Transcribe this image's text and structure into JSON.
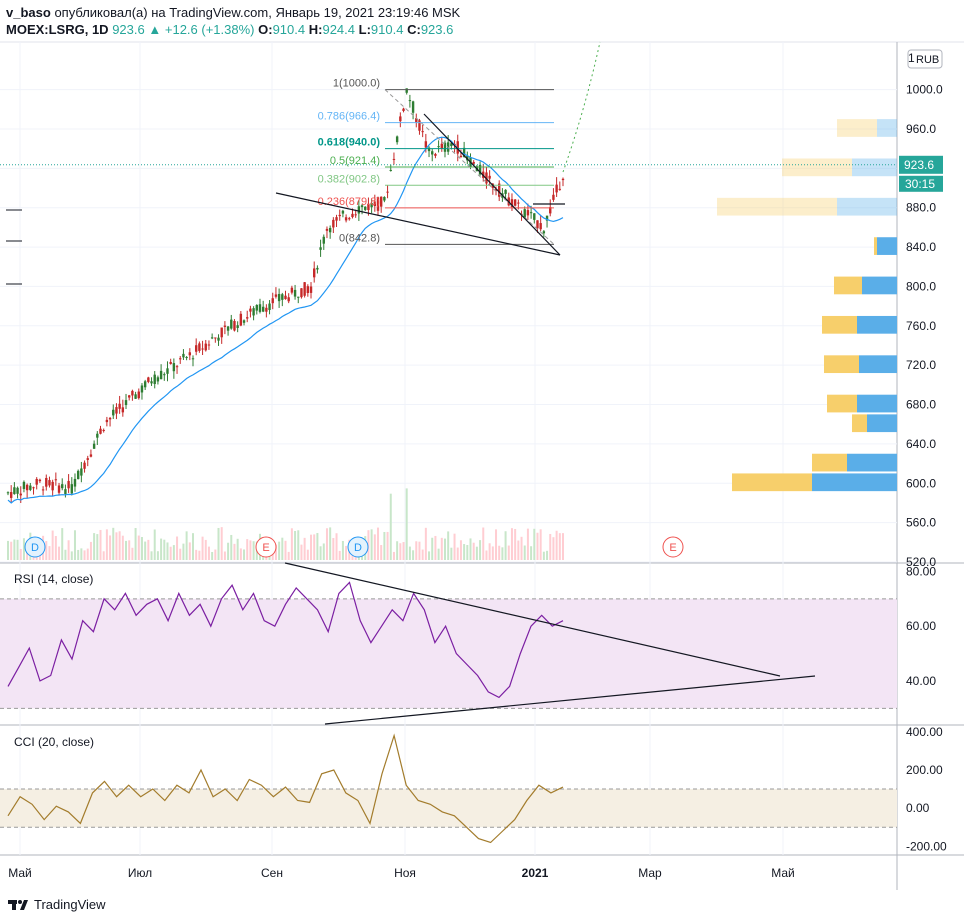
{
  "header": {
    "user": "v_baso",
    "published": "опубликовал(а) на TradingView.com, Январь 19, 2021 23:19:46 MSK",
    "symbol": "MOEX:LSRG, 1D",
    "last": "923.6",
    "change_arrow": "▲",
    "change": "+12.6 (+1.38%)",
    "o_label": "O:",
    "o": "910.4",
    "h_label": "H:",
    "h": "924.4",
    "l_label": "L:",
    "l": "910.4",
    "c_label": "C:",
    "c": "923.6"
  },
  "footer": {
    "brand": "TradingView",
    "logo_icon": "tradingview-logo-icon"
  },
  "colors": {
    "up": "#26a69a",
    "down": "#ef5350",
    "bar_up": "#2e7d32",
    "bar_down": "#c62828",
    "ma": "#2196f3",
    "rsi": "#7b1fa2",
    "rsi_band": "#f3e5f5",
    "cci": "#a37c2c",
    "cci_band": "#f5efe3",
    "vp_up": "#5aaee8",
    "vp_down": "#f7cf6b"
  },
  "chart_data": [
    {
      "type": "candlestick",
      "title": "MOEX:LSRG, 1D",
      "currency": "RUB",
      "ylim": [
        520,
        1025
      ],
      "price_ticks": [
        "1000.0",
        "960.0",
        "920.0",
        "880.0",
        "840.0",
        "800.0",
        "760.0",
        "720.0",
        "680.0",
        "640.0",
        "600.0",
        "560.0",
        "520.0"
      ],
      "x_ticks": [
        "Май",
        "Июл",
        "Сен",
        "Ноя",
        "2021",
        "Мар",
        "Май"
      ],
      "last_price_label": "923.6",
      "countdown": "30:15",
      "fib_levels": [
        {
          "label": "1(1000.0)",
          "value": 1000.0,
          "color": "#555555"
        },
        {
          "label": "0.786(966.4)",
          "value": 966.4,
          "color": "#64b5f6"
        },
        {
          "label": "0.618(940.0)",
          "value": 940.0,
          "color": "#009688"
        },
        {
          "label": "0.5(921.4)",
          "value": 921.4,
          "color": "#4caf50"
        },
        {
          "label": "0.382(902.8)",
          "value": 902.8,
          "color": "#81c784"
        },
        {
          "label": "0.236(879.8)",
          "value": 879.8,
          "color": "#ef5350"
        },
        {
          "label": "0(842.8)",
          "value": 842.8,
          "color": "#555555"
        }
      ],
      "event_markers": [
        {
          "label": "D",
          "kind": "dividend"
        },
        {
          "label": "E",
          "kind": "earnings"
        },
        {
          "label": "D",
          "kind": "dividend"
        },
        {
          "label": "E",
          "kind": "earnings"
        }
      ],
      "volume_profile": [
        {
          "price": 600,
          "up": 85,
          "down": 80
        },
        {
          "price": 620,
          "up": 50,
          "down": 35
        },
        {
          "price": 660,
          "up": 30,
          "down": 15
        },
        {
          "price": 680,
          "up": 40,
          "down": 30
        },
        {
          "price": 720,
          "up": 38,
          "down": 35
        },
        {
          "price": 760,
          "up": 40,
          "down": 35
        },
        {
          "price": 800,
          "up": 35,
          "down": 28
        },
        {
          "price": 840,
          "up": 20,
          "down": 3
        },
        {
          "price": 880,
          "up": 60,
          "down": 120
        },
        {
          "price": 920,
          "up": 45,
          "down": 70
        },
        {
          "price": 960,
          "up": 20,
          "down": 40
        }
      ],
      "ma_label": "MA"
    },
    {
      "type": "line",
      "title": "RSI (14, close)",
      "ylim": [
        25,
        82
      ],
      "y_ticks": [
        "80.00",
        "60.00",
        "40.00"
      ],
      "band": [
        30,
        70
      ],
      "series": [
        {
          "name": "RSI (14, close)",
          "values": [
            38,
            45,
            52,
            40,
            42,
            55,
            48,
            62,
            58,
            70,
            66,
            72,
            64,
            68,
            70,
            62,
            72,
            64,
            68,
            60,
            70,
            75,
            66,
            72,
            62,
            60,
            68,
            74,
            70,
            66,
            58,
            72,
            76,
            62,
            54,
            60,
            66,
            62,
            72,
            66,
            54,
            60,
            50,
            46,
            42,
            36,
            34,
            38,
            50,
            60,
            64,
            60,
            62
          ]
        }
      ]
    },
    {
      "type": "line",
      "title": "CCI (20, close)",
      "ylim": [
        -230,
        420
      ],
      "y_ticks": [
        "400.00",
        "200.00",
        "0.00",
        "-200.00"
      ],
      "band": [
        -100,
        100
      ],
      "series": [
        {
          "name": "CCI (20, close)",
          "values": [
            -40,
            60,
            20,
            -60,
            10,
            -20,
            -80,
            80,
            140,
            60,
            120,
            60,
            100,
            40,
            120,
            80,
            200,
            60,
            100,
            40,
            150,
            120,
            60,
            110,
            40,
            30,
            180,
            200,
            80,
            40,
            -80,
            180,
            380,
            120,
            40,
            20,
            -20,
            -40,
            -100,
            -160,
            -180,
            -120,
            -60,
            40,
            120,
            80,
            110
          ]
        }
      ]
    }
  ]
}
